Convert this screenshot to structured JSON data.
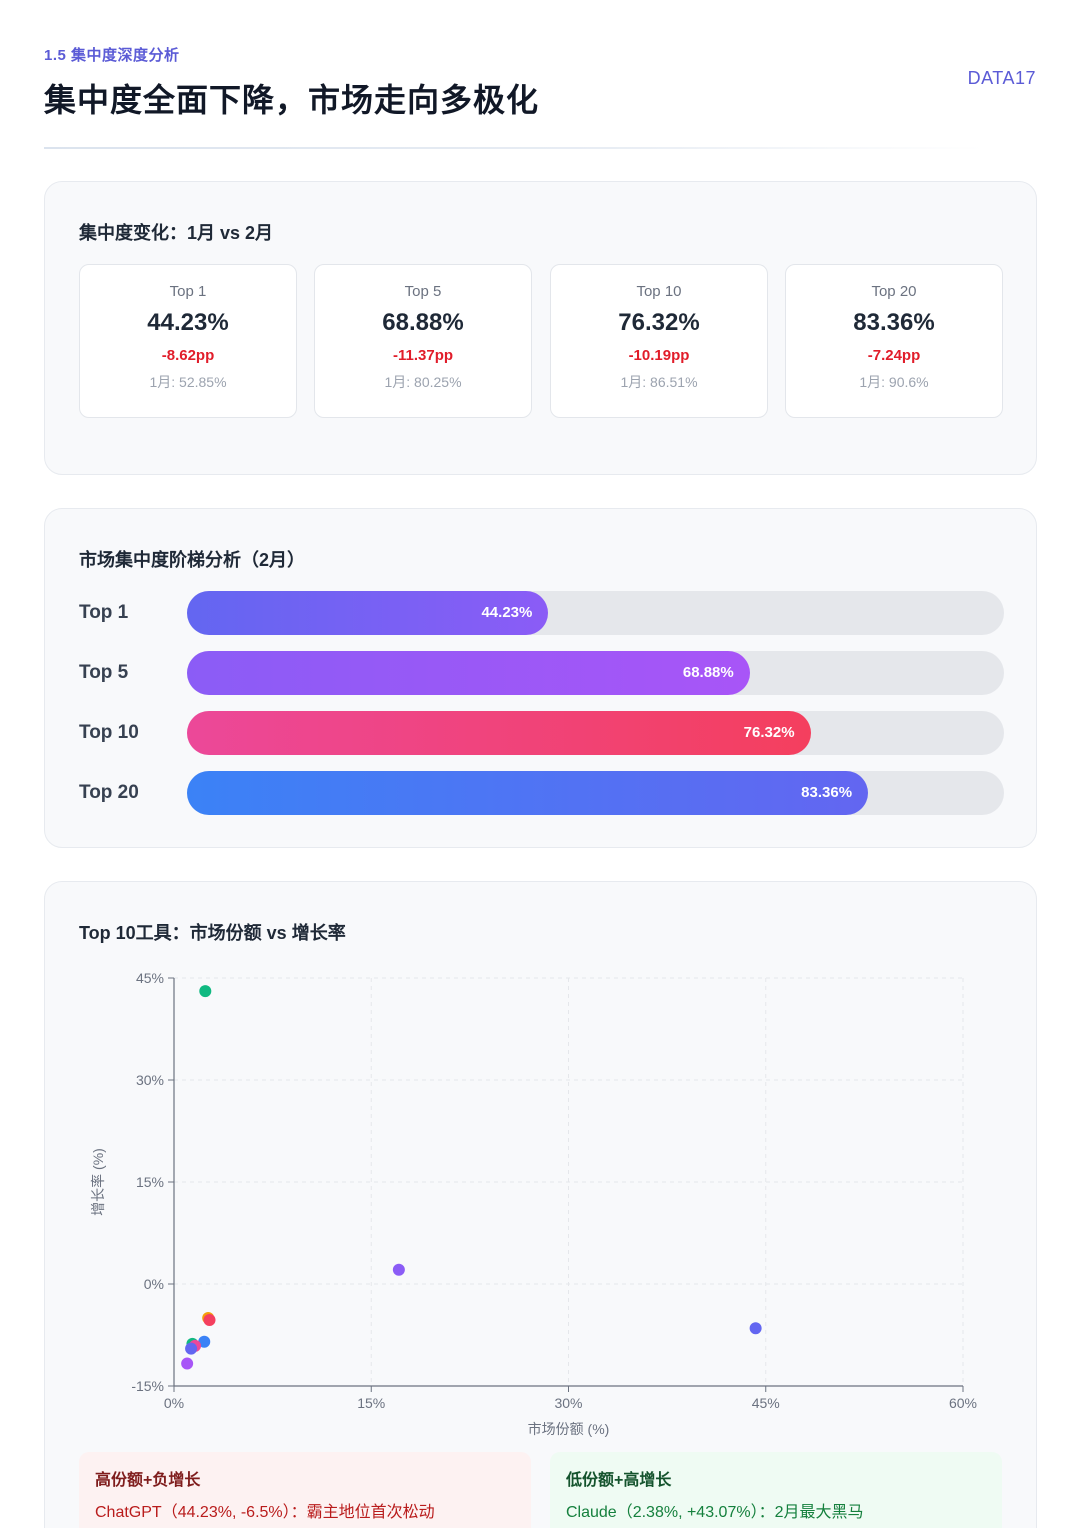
{
  "header": {
    "section": "1.5 集中度深度分析",
    "title": "集中度全面下降，市场走向多极化",
    "brand": "DATA17"
  },
  "concentration": {
    "title": "集中度变化：1月 vs 2月",
    "stats": [
      {
        "label": "Top 1",
        "value": "44.23%",
        "change": "-8.62pp",
        "prev": "1月: 52.85%"
      },
      {
        "label": "Top 5",
        "value": "68.88%",
        "change": "-11.37pp",
        "prev": "1月: 80.25%"
      },
      {
        "label": "Top 10",
        "value": "76.32%",
        "change": "-10.19pp",
        "prev": "1月: 86.51%"
      },
      {
        "label": "Top 20",
        "value": "83.36%",
        "change": "-7.24pp",
        "prev": "1月: 90.6%"
      }
    ]
  },
  "ladder": {
    "title": "市场集中度阶梯分析（2月）",
    "rows": [
      {
        "label": "Top 1",
        "value_text": "44.23%",
        "pct": 44.23,
        "color_from": "#6366f1",
        "color_to": "#8b5cf6"
      },
      {
        "label": "Top 5",
        "value_text": "68.88%",
        "pct": 68.88,
        "color_from": "#8b5cf6",
        "color_to": "#a855f7"
      },
      {
        "label": "Top 10",
        "value_text": "76.32%",
        "pct": 76.32,
        "color_from": "#ec4899",
        "color_to": "#f43f5e"
      },
      {
        "label": "Top 20",
        "value_text": "83.36%",
        "pct": 83.36,
        "color_from": "#3b82f6",
        "color_to": "#6366f1"
      }
    ]
  },
  "scatter_card": {
    "title": "Top 10工具：市场份额 vs 增长率"
  },
  "chart_data": {
    "type": "scatter",
    "title": "Top 10工具：市场份额 vs 增长率",
    "xlabel": "市场份额 (%)",
    "ylabel": "增长率 (%)",
    "xlim": [
      0,
      60
    ],
    "ylim": [
      -15,
      45
    ],
    "xticks": [
      0,
      15,
      30,
      45,
      60
    ],
    "xtick_labels": [
      "0%",
      "15%",
      "30%",
      "45%",
      "60%"
    ],
    "yticks": [
      -15,
      0,
      15,
      30,
      45
    ],
    "ytick_labels": [
      "-15%",
      "0%",
      "15%",
      "30%",
      "45%"
    ],
    "grid": true,
    "points": [
      {
        "x": 44.23,
        "y": -6.5,
        "color": "#6366f1"
      },
      {
        "x": 2.38,
        "y": 43.07,
        "color": "#10b981"
      },
      {
        "x": 17.1,
        "y": 2.1,
        "color": "#8b5cf6"
      },
      {
        "x": 2.6,
        "y": -5.0,
        "color": "#f59e0b"
      },
      {
        "x": 2.7,
        "y": -5.3,
        "color": "#f43f5e"
      },
      {
        "x": 2.3,
        "y": -8.5,
        "color": "#3b82f6"
      },
      {
        "x": 1.4,
        "y": -8.8,
        "color": "#10b981"
      },
      {
        "x": 1.6,
        "y": -9.1,
        "color": "#ec4899"
      },
      {
        "x": 1.3,
        "y": -9.5,
        "color": "#6366f1"
      },
      {
        "x": 1.0,
        "y": -11.7,
        "color": "#a855f7"
      }
    ]
  },
  "notes": [
    {
      "title": "高份额+负增长",
      "text": "ChatGPT（44.23%, -6.5%）：霸主地位首次松动",
      "bg": "#fdf2f2",
      "title_color": "#7f1d1d",
      "text_color": "#b91c1c"
    },
    {
      "title": "低份额+高增长",
      "text": "Claude（2.38%, +43.07%）：2月最大黑马",
      "bg": "#effbf3",
      "title_color": "#14532d",
      "text_color": "#15803d"
    }
  ]
}
